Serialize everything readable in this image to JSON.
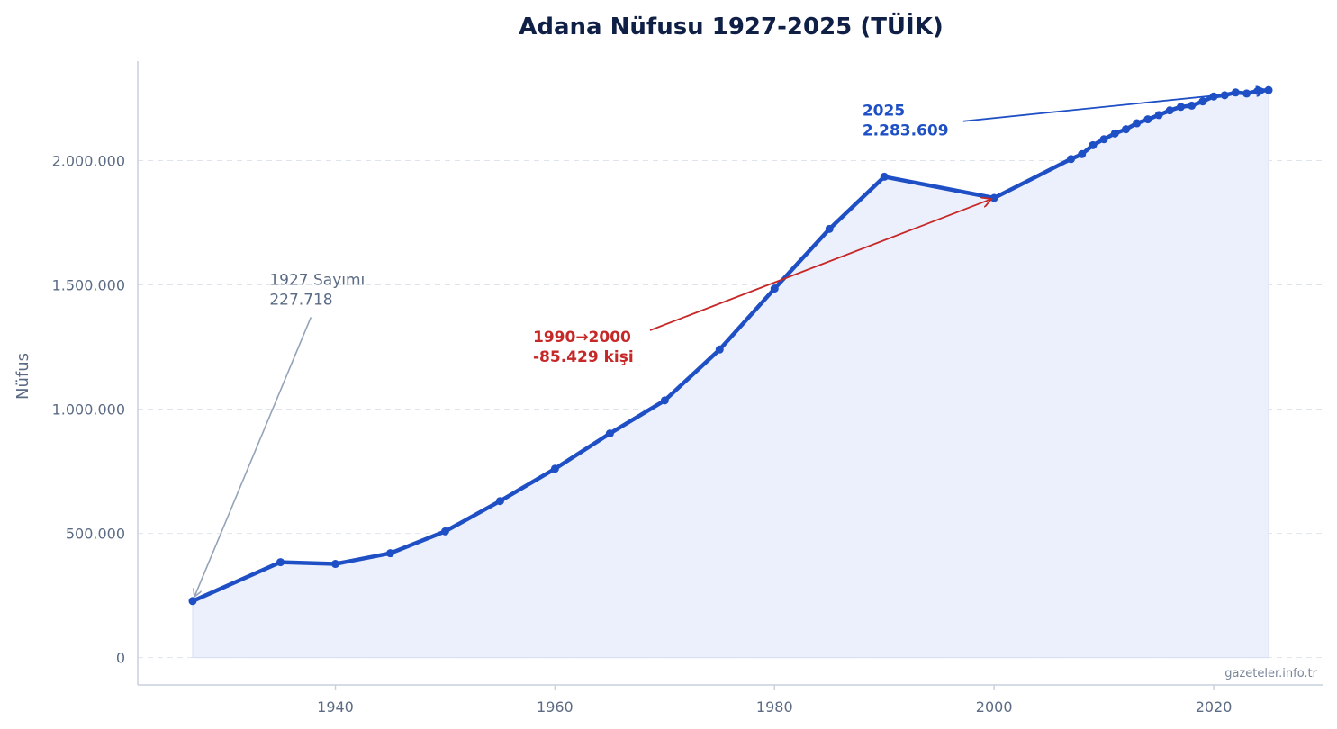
{
  "chart_data": {
    "type": "line",
    "title": "Adana Nüfusu 1927-2025 (TÜİK)",
    "xlabel": "",
    "ylabel": "Nüfus",
    "xlim": [
      1922,
      2030
    ],
    "ylim": [
      -110000,
      2400000
    ],
    "x_ticks": [
      1940,
      1960,
      1980,
      2000,
      2020
    ],
    "y_ticks": [
      0,
      500000,
      1000000,
      1500000,
      2000000
    ],
    "y_tick_labels": [
      "0",
      "500.000",
      "1.000.000",
      "1.500.000",
      "2.000.000"
    ],
    "grid": "horizontal dashed",
    "line_color": "#1e4fc4",
    "fill_color": "#ecf0fc",
    "x": [
      1927,
      1935,
      1940,
      1945,
      1950,
      1955,
      1960,
      1965,
      1970,
      1975,
      1980,
      1985,
      1990,
      2000,
      2007,
      2008,
      2009,
      2010,
      2011,
      2012,
      2013,
      2014,
      2015,
      2016,
      2017,
      2018,
      2019,
      2020,
      2021,
      2022,
      2023,
      2024,
      2025
    ],
    "values": [
      227718,
      384000,
      377000,
      420000,
      508000,
      630000,
      760000,
      902000,
      1035000,
      1240000,
      1485000,
      1725000,
      1934907,
      1849478,
      2006000,
      2026000,
      2062000,
      2086000,
      2109000,
      2126000,
      2150000,
      2166000,
      2183000,
      2202000,
      2216000,
      2221000,
      2238000,
      2258000,
      2263000,
      2274000,
      2270000,
      2280000,
      2283609
    ],
    "annotations": [
      {
        "id": "first",
        "lines": [
          "1927 Sayımı",
          "227.718"
        ],
        "target_x": 1927,
        "target_y": 227718,
        "text_x": 1934,
        "text_y": 1500000,
        "color": "#94a3b8"
      },
      {
        "id": "drop",
        "lines": [
          "1990→2000",
          "-85.429 kişi"
        ],
        "target_x": 2000,
        "target_y": 1849478,
        "text_x": 1958,
        "text_y": 1270000,
        "color": "#c62828"
      },
      {
        "id": "last",
        "lines": [
          "2025",
          "2.283.609"
        ],
        "target_x": 2025,
        "target_y": 2283609,
        "text_x": 1988,
        "text_y": 2180000,
        "color": "#1e4fc4"
      }
    ]
  },
  "watermark": "gazeteler.info.tr"
}
